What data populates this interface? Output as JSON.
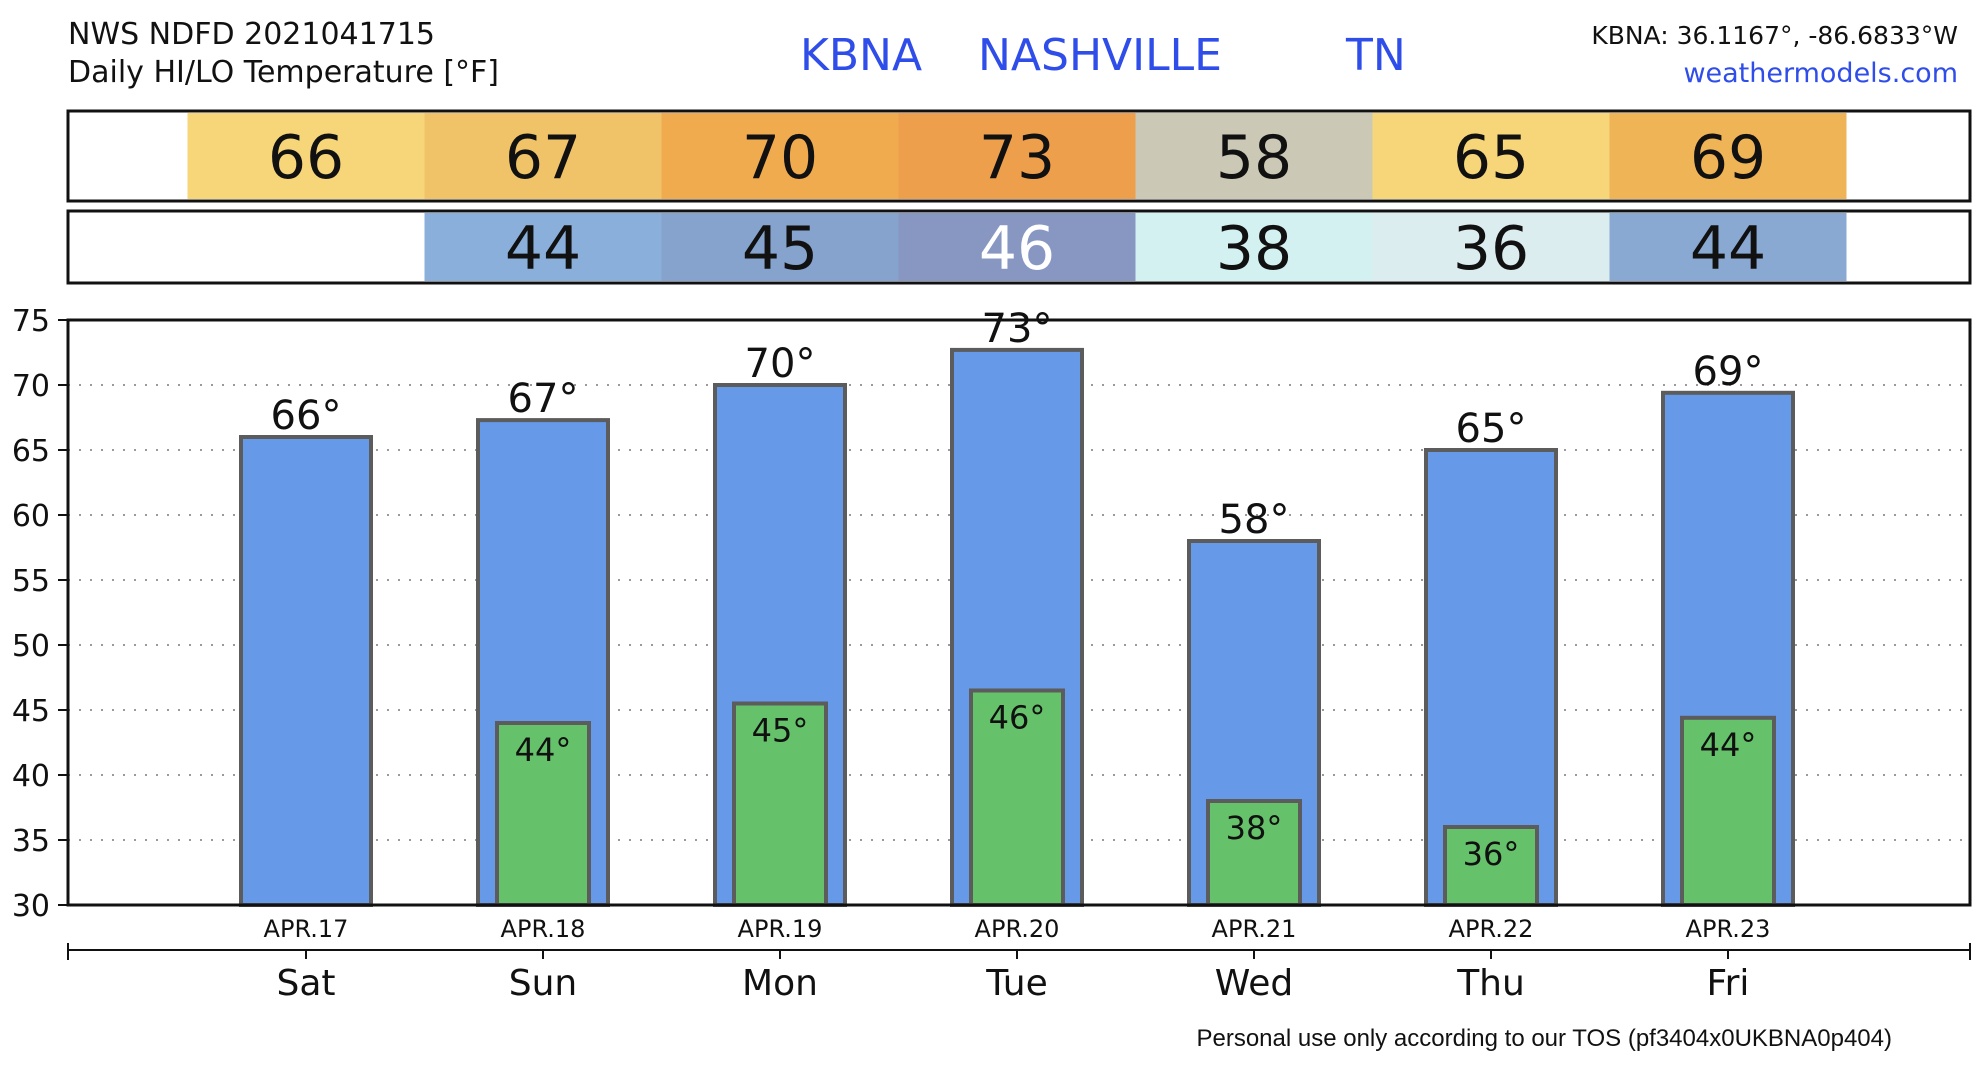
{
  "header": {
    "source_line": "NWS NDFD 2021041715",
    "subtitle": "Daily HI/LO Temperature [°F]",
    "station_code": "KBNA",
    "station_name": "NASHVILLE",
    "station_state": "TN",
    "coords": "KBNA: 36.1167°, -86.6833°W",
    "site": "weathermodels.com"
  },
  "colors": {
    "bar_high": "#6699e8",
    "bar_low": "#66c16b",
    "bar_edge": "#5c5c5c",
    "title_blue": "#2f4de8",
    "site_blue": "#2f4de8"
  },
  "strip_high": {
    "cells": [
      {
        "value": "66",
        "color": "#f7d67a",
        "text_color": "#111111"
      },
      {
        "value": "67",
        "color": "#f1c368",
        "text_color": "#111111"
      },
      {
        "value": "70",
        "color": "#f0ab4e",
        "text_color": "#111111"
      },
      {
        "value": "73",
        "color": "#ee9f4c",
        "text_color": "#111111"
      },
      {
        "value": "58",
        "color": "#cbc9b5",
        "text_color": "#111111"
      },
      {
        "value": "65",
        "color": "#f7d67a",
        "text_color": "#111111"
      },
      {
        "value": "69",
        "color": "#efb455",
        "text_color": "#111111"
      }
    ]
  },
  "strip_low": {
    "cells": [
      {
        "value": "",
        "color": "#ffffff",
        "text_color": "#111111"
      },
      {
        "value": "44",
        "color": "#8aafdb",
        "text_color": "#111111"
      },
      {
        "value": "45",
        "color": "#85a3cd",
        "text_color": "#111111"
      },
      {
        "value": "46",
        "color": "#8797c2",
        "text_color": "#ffffff"
      },
      {
        "value": "38",
        "color": "#d3f1f1",
        "text_color": "#111111"
      },
      {
        "value": "36",
        "color": "#dcedef",
        "text_color": "#111111"
      },
      {
        "value": "44",
        "color": "#89a9d3",
        "text_color": "#111111"
      }
    ]
  },
  "chart_data": {
    "type": "bar",
    "categories": [
      "Sat",
      "Sun",
      "Mon",
      "Tue",
      "Wed",
      "Thu",
      "Fri"
    ],
    "dates": [
      "APR.17",
      "APR.18",
      "APR.19",
      "APR.20",
      "APR.21",
      "APR.22",
      "APR.23"
    ],
    "series": [
      {
        "values": [
          66,
          67.3,
          70,
          72.7,
          58,
          65,
          69.4
        ],
        "labels": [
          "66°",
          "67°",
          "70°",
          "73°",
          "58°",
          "65°",
          "69°"
        ]
      },
      {
        "values": [
          null,
          44,
          45.5,
          46.5,
          38,
          36,
          44.4
        ],
        "labels": [
          "",
          "44°",
          "45°",
          "46°",
          "38°",
          "36°",
          "44°"
        ]
      }
    ],
    "ylim": [
      30,
      75
    ],
    "yticks": [
      30,
      35,
      40,
      45,
      50,
      55,
      60,
      65,
      70,
      75
    ],
    "grid": "horizontal dotted",
    "legend": "none"
  },
  "footer": {
    "notice": "Personal use only according to our TOS (pf3404x0UKBNA0p404)"
  }
}
